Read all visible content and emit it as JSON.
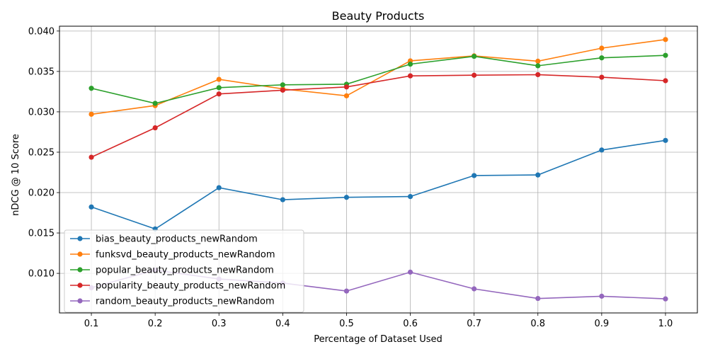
{
  "chart_data": {
    "type": "line",
    "title": "Beauty Products",
    "xlabel": "Percentage of Dataset Used",
    "ylabel": "nDCG @ 10 Score",
    "x": [
      0.1,
      0.2,
      0.3,
      0.4,
      0.5,
      0.6,
      0.7,
      0.8,
      0.9,
      1.0
    ],
    "x_tick_labels": [
      "0.1",
      "0.2",
      "0.3",
      "0.4",
      "0.5",
      "0.6",
      "0.7",
      "0.8",
      "0.9",
      "1.0"
    ],
    "y_ticks": [
      0.01,
      0.015,
      0.02,
      0.025,
      0.03,
      0.035,
      0.04
    ],
    "y_tick_labels": [
      "0.010",
      "0.015",
      "0.020",
      "0.025",
      "0.030",
      "0.035",
      "0.040"
    ],
    "xlim": [
      0.05,
      1.05
    ],
    "ylim": [
      0.0051,
      0.0406
    ],
    "grid": true,
    "legend_position": "lower-left",
    "series": [
      {
        "name": "bias_beauty_products_newRandom",
        "color": "#1f77b4",
        "values": [
          0.01822,
          0.0155,
          0.02061,
          0.01912,
          0.01941,
          0.01951,
          0.02211,
          0.02218,
          0.02527,
          0.02646
        ]
      },
      {
        "name": "funksvd_beauty_products_newRandom",
        "color": "#ff7f0e",
        "values": [
          0.0297,
          0.03077,
          0.03402,
          0.03283,
          0.03198,
          0.03631,
          0.03693,
          0.03627,
          0.03788,
          0.03895
        ]
      },
      {
        "name": "popular_beauty_products_newRandom",
        "color": "#2ca02c",
        "values": [
          0.03291,
          0.03105,
          0.03299,
          0.03334,
          0.03342,
          0.0359,
          0.03687,
          0.0357,
          0.03668,
          0.03699
        ]
      },
      {
        "name": "popularity_beauty_products_newRandom",
        "color": "#d62728",
        "values": [
          0.02438,
          0.02802,
          0.03221,
          0.03268,
          0.03308,
          0.03445,
          0.03453,
          0.0346,
          0.03428,
          0.03385
        ]
      },
      {
        "name": "random_beauty_products_newRandom",
        "color": "#9467bd",
        "values": [
          0.00822,
          0.0104,
          0.0093,
          0.0088,
          0.00781,
          0.01015,
          0.00808,
          0.00689,
          0.00717,
          0.00684
        ]
      }
    ]
  }
}
